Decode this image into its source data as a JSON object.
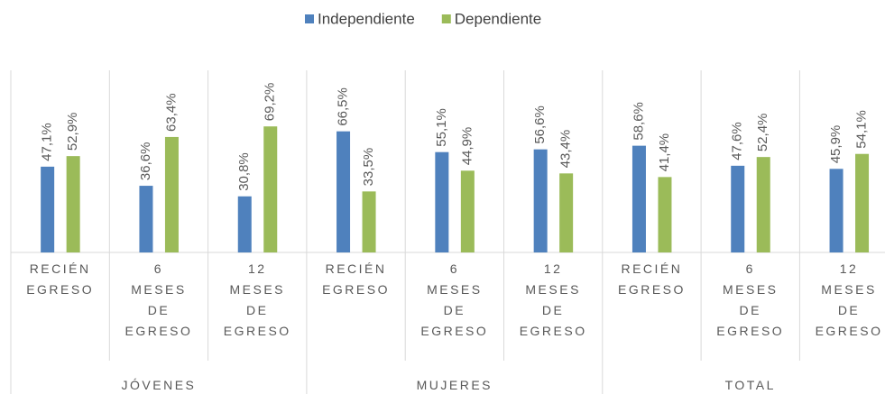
{
  "chart_data": {
    "type": "bar",
    "categories": [
      "RECIÉN EGRESO",
      "6 MESES DE EGRESO",
      "12 MESES DE EGRESO",
      "RECIÉN EGRESO",
      "6 MESES DE EGRESO",
      "12 MESES DE EGRESO",
      "RECIÉN EGRESO",
      "6 MESES DE EGRESO",
      "12 MESES DE EGRESO"
    ],
    "groups": [
      "JÓVENES",
      "MUJERES",
      "TOTAL"
    ],
    "series": [
      {
        "name": "Independiente",
        "color": "#4f81bd",
        "values": [
          47.1,
          36.6,
          30.8,
          66.5,
          55.1,
          56.6,
          58.6,
          47.6,
          45.9
        ],
        "value_labels": [
          "47,1%",
          "36,6%",
          "30,8%",
          "66,5%",
          "55,1%",
          "56,6%",
          "58,6%",
          "47,6%",
          "45,9%"
        ]
      },
      {
        "name": "Dependiente",
        "color": "#9bbb59",
        "values": [
          52.9,
          63.4,
          69.2,
          33.5,
          44.9,
          43.4,
          41.4,
          52.4,
          54.1
        ],
        "value_labels": [
          "52,9%",
          "63,4%",
          "69,2%",
          "33,5%",
          "44,9%",
          "43,4%",
          "41,4%",
          "52,4%",
          "54,1%"
        ]
      }
    ],
    "legend": "top"
  }
}
